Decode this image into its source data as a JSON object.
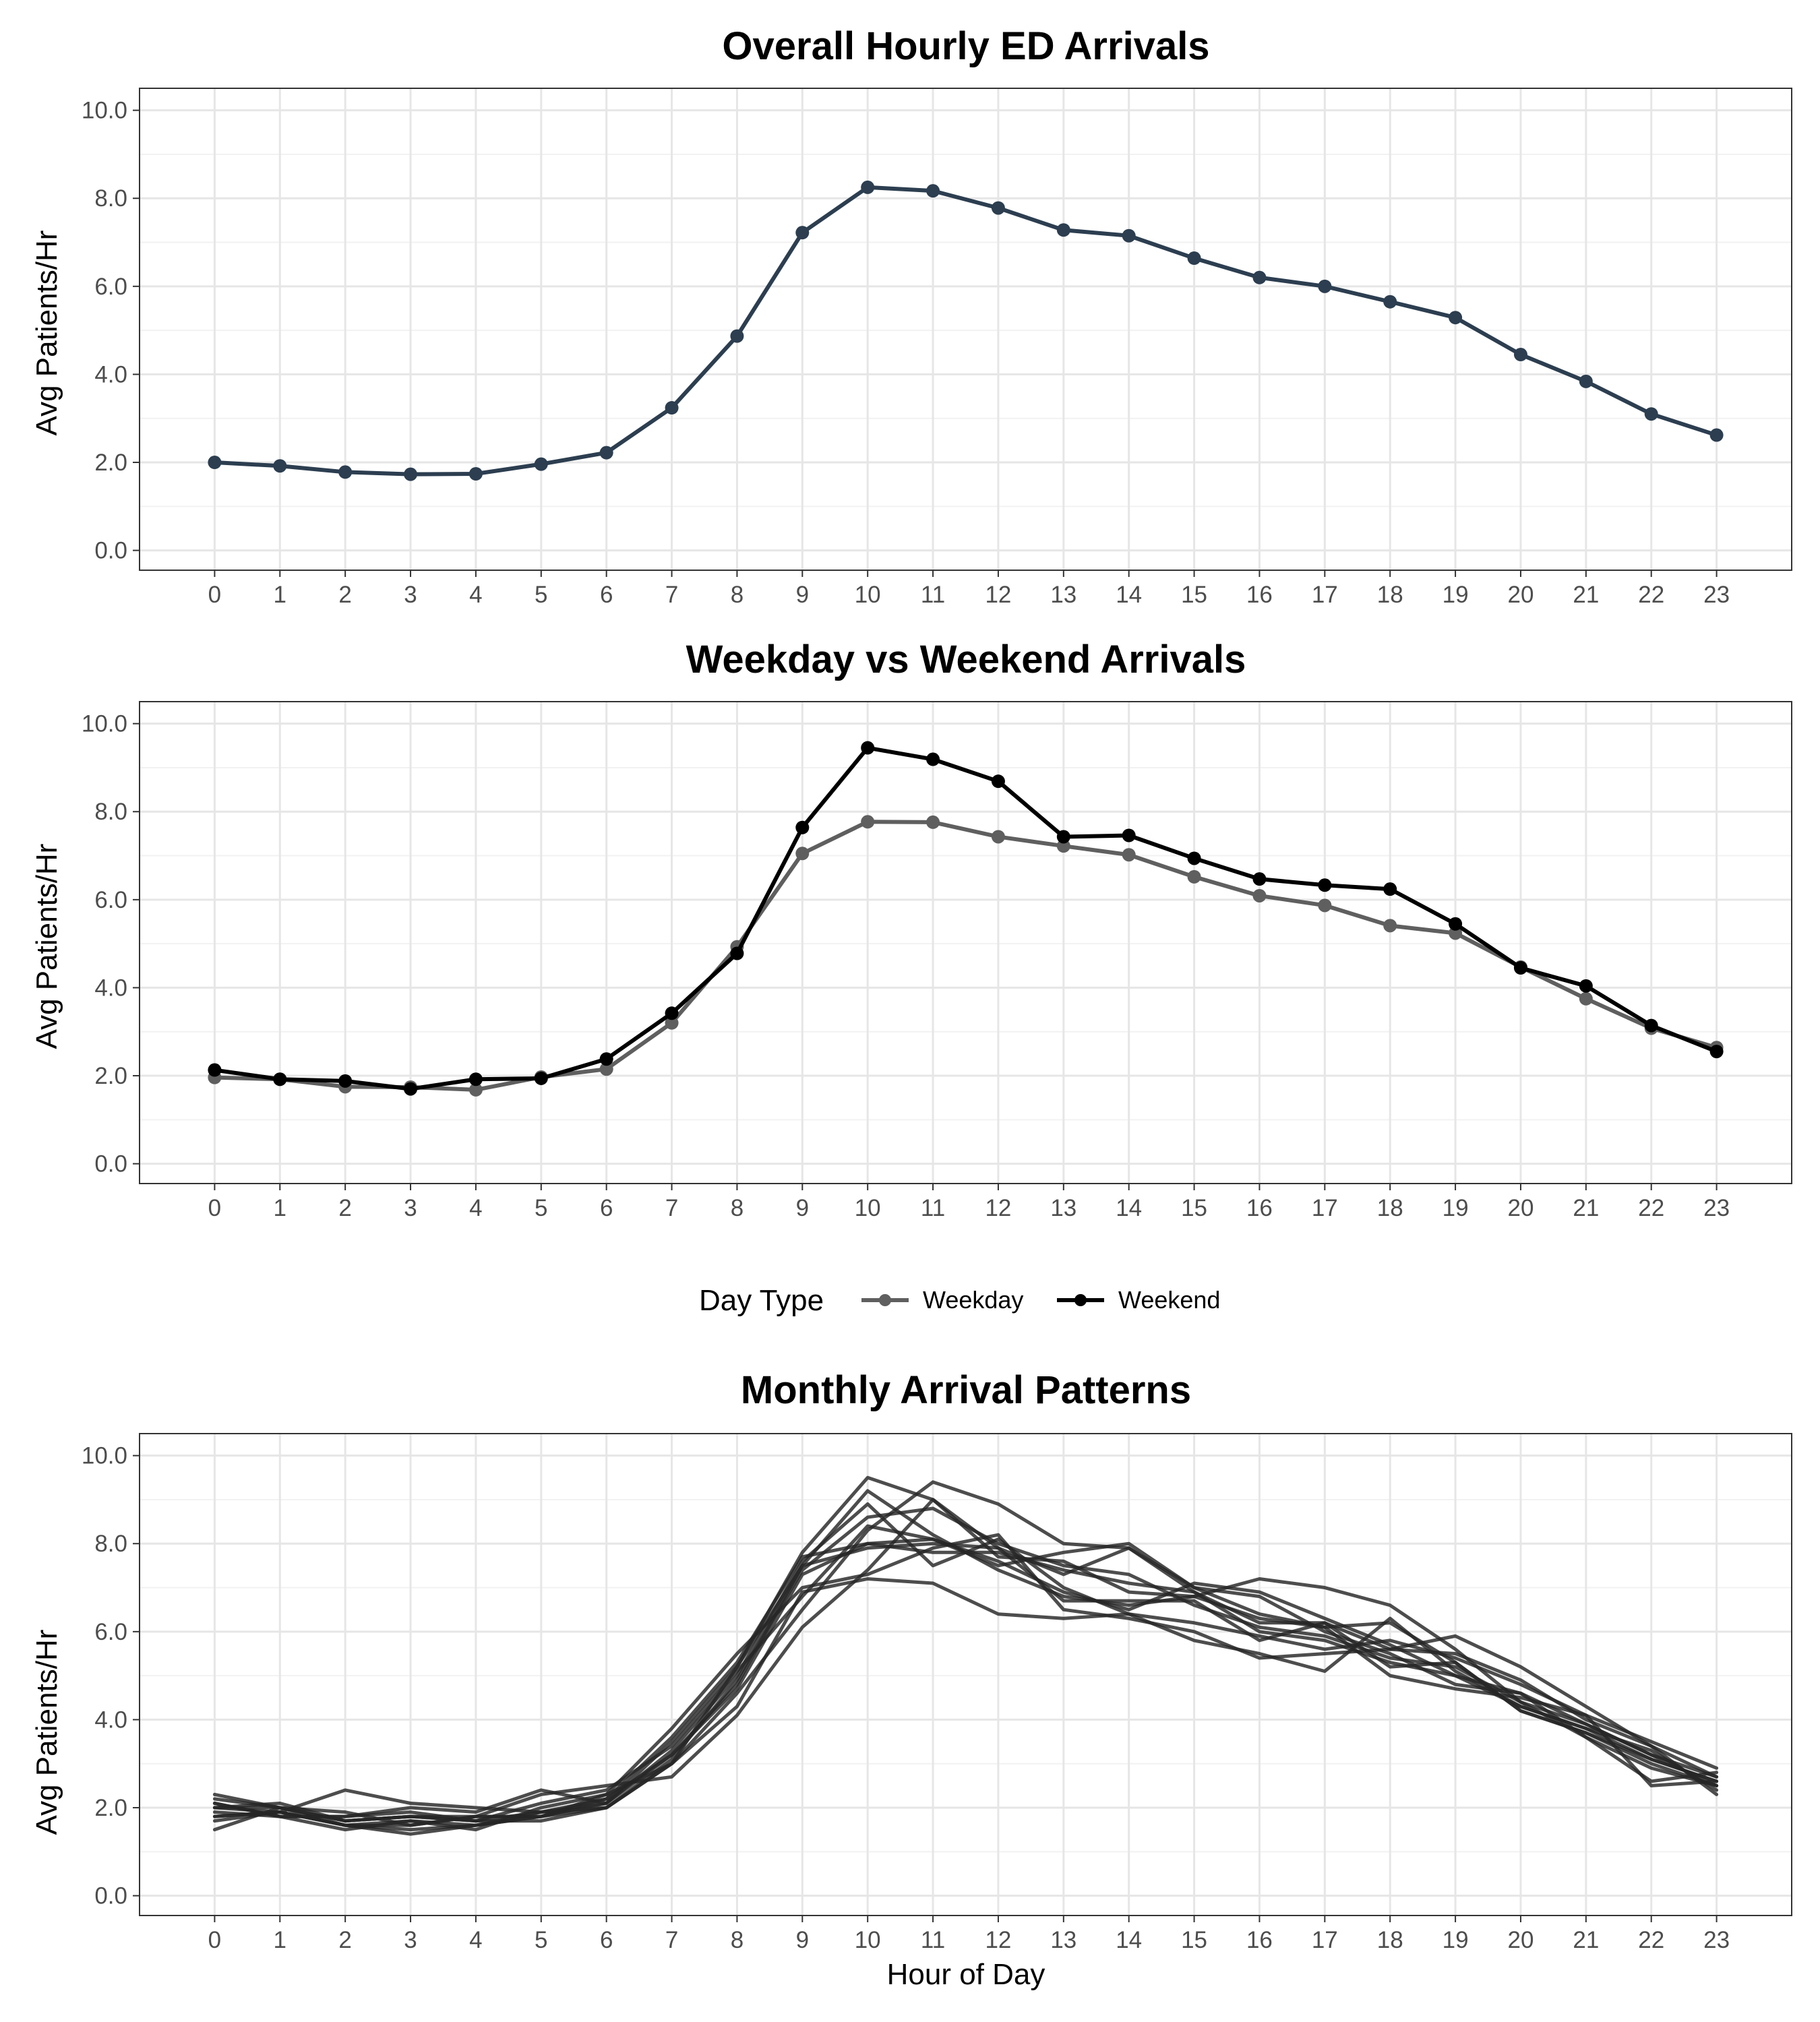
{
  "chart_data": [
    {
      "type": "line",
      "title": "Overall Hourly ED Arrivals",
      "xlabel": "",
      "ylabel": "Avg Patients/Hr",
      "x": [
        0,
        1,
        2,
        3,
        4,
        5,
        6,
        7,
        8,
        9,
        10,
        11,
        12,
        13,
        14,
        15,
        16,
        17,
        18,
        19,
        20,
        21,
        22,
        23
      ],
      "xlim": [
        -1.15,
        24.15
      ],
      "ylim": [
        -0.45,
        10.5
      ],
      "yticks": [
        "0.0",
        "2.0",
        "4.0",
        "6.0",
        "8.0",
        "10.0"
      ],
      "grid": true,
      "series": [
        {
          "color": "#2c3e50",
          "markers": true,
          "values": [
            2.0,
            1.92,
            1.78,
            1.73,
            1.74,
            1.96,
            2.22,
            3.24,
            4.87,
            7.22,
            8.25,
            8.17,
            7.78,
            7.28,
            7.15,
            6.64,
            6.2,
            6.0,
            5.65,
            5.29,
            4.45,
            3.84,
            3.1,
            2.62
          ]
        }
      ]
    },
    {
      "type": "line",
      "title": "Weekday vs Weekend Arrivals",
      "xlabel": "",
      "ylabel": "Avg Patients/Hr",
      "x": [
        0,
        1,
        2,
        3,
        4,
        5,
        6,
        7,
        8,
        9,
        10,
        11,
        12,
        13,
        14,
        15,
        16,
        17,
        18,
        19,
        20,
        21,
        22,
        23
      ],
      "xlim": [
        -1.15,
        24.15
      ],
      "ylim": [
        -0.45,
        10.5
      ],
      "yticks": [
        "0.0",
        "2.0",
        "4.0",
        "6.0",
        "8.0",
        "10.0"
      ],
      "grid": true,
      "legend": {
        "title": "Day Type",
        "position": "bottom"
      },
      "series": [
        {
          "name": "Weekday",
          "color": "#5f5f5f",
          "markers": true,
          "values": [
            1.96,
            1.92,
            1.75,
            1.74,
            1.68,
            1.97,
            2.15,
            3.2,
            4.93,
            7.05,
            7.77,
            7.76,
            7.43,
            7.22,
            7.02,
            6.52,
            6.09,
            5.87,
            5.41,
            5.24,
            4.47,
            3.75,
            3.08,
            2.64
          ]
        },
        {
          "name": "Weekend",
          "color": "#000000",
          "markers": true,
          "values": [
            2.13,
            1.92,
            1.88,
            1.7,
            1.92,
            1.94,
            2.38,
            3.42,
            4.78,
            7.64,
            9.45,
            9.19,
            8.69,
            7.43,
            7.46,
            6.94,
            6.47,
            6.33,
            6.24,
            5.45,
            4.45,
            4.04,
            3.14,
            2.55
          ]
        }
      ]
    },
    {
      "type": "line",
      "title": "Monthly Arrival Patterns",
      "xlabel": "Hour of Day",
      "ylabel": "Avg Patients/Hr",
      "x": [
        0,
        1,
        2,
        3,
        4,
        5,
        6,
        7,
        8,
        9,
        10,
        11,
        12,
        13,
        14,
        15,
        16,
        17,
        18,
        19,
        20,
        21,
        22,
        23
      ],
      "xlim": [
        -1.15,
        24.15
      ],
      "ylim": [
        -0.45,
        10.5
      ],
      "yticks": [
        "0.0",
        "2.0",
        "4.0",
        "6.0",
        "8.0",
        "10.0"
      ],
      "grid": true,
      "series": [
        {
          "color": "#262626",
          "values": [
            2.3,
            2.0,
            1.6,
            1.5,
            1.6,
            1.8,
            2.1,
            3.5,
            5.2,
            7.8,
            9.5,
            9.0,
            7.9,
            7.3,
            7.9,
            6.9,
            6.0,
            5.8,
            5.3,
            5.0,
            4.3,
            3.8,
            3.1,
            2.6
          ]
        },
        {
          "color": "#262626",
          "values": [
            1.5,
            2.0,
            1.7,
            1.8,
            1.7,
            1.7,
            2.0,
            3.0,
            4.6,
            6.5,
            8.3,
            9.4,
            8.9,
            8.0,
            7.9,
            7.0,
            6.4,
            6.1,
            6.2,
            5.3,
            4.2,
            3.7,
            3.0,
            2.5
          ]
        },
        {
          "color": "#262626",
          "values": [
            2.0,
            1.9,
            2.4,
            2.1,
            2.0,
            1.9,
            2.0,
            3.0,
            4.3,
            6.9,
            7.2,
            7.1,
            6.4,
            6.3,
            6.4,
            6.2,
            5.9,
            5.6,
            5.8,
            5.4,
            4.8,
            4.1,
            2.5,
            2.6
          ]
        },
        {
          "color": "#262626",
          "values": [
            1.8,
            1.9,
            1.6,
            1.4,
            1.6,
            1.8,
            2.2,
            3.2,
            4.8,
            7.5,
            9.2,
            8.2,
            7.4,
            6.8,
            6.6,
            6.8,
            6.3,
            6.1,
            5.0,
            4.7,
            4.5,
            4.1,
            3.5,
            2.9
          ]
        },
        {
          "color": "#262626",
          "values": [
            2.1,
            1.8,
            1.5,
            1.7,
            1.5,
            2.0,
            2.3,
            3.8,
            5.5,
            7.0,
            7.3,
            7.9,
            8.2,
            6.5,
            6.3,
            6.0,
            5.4,
            5.5,
            5.6,
            5.9,
            5.2,
            4.3,
            3.4,
            2.3
          ]
        },
        {
          "color": "#262626",
          "values": [
            2.2,
            2.0,
            1.9,
            1.6,
            1.8,
            2.3,
            2.5,
            2.7,
            4.1,
            6.1,
            7.4,
            9.0,
            7.7,
            7.6,
            6.9,
            6.8,
            7.2,
            7.0,
            6.6,
            5.6,
            4.4,
            3.6,
            2.6,
            2.8
          ]
        },
        {
          "color": "#262626",
          "values": [
            1.9,
            1.8,
            1.8,
            2.0,
            1.9,
            2.4,
            2.1,
            3.3,
            5.0,
            7.6,
            8.9,
            7.5,
            8.1,
            7.0,
            6.4,
            5.8,
            5.5,
            5.1,
            6.3,
            5.1,
            4.3,
            3.8,
            3.3,
            2.4
          ]
        },
        {
          "color": "#262626",
          "values": [
            2.0,
            2.0,
            1.7,
            1.8,
            1.7,
            1.9,
            2.2,
            3.6,
            5.3,
            7.7,
            8.0,
            8.1,
            7.6,
            6.9,
            6.5,
            7.1,
            6.9,
            6.3,
            5.7,
            5.0,
            4.6,
            3.9,
            3.2,
            2.7
          ]
        },
        {
          "color": "#262626",
          "values": [
            1.7,
            1.9,
            1.6,
            1.6,
            1.8,
            1.8,
            2.0,
            3.1,
            4.9,
            7.4,
            8.6,
            8.8,
            8.0,
            7.5,
            7.3,
            6.6,
            6.1,
            5.9,
            5.4,
            5.2,
            4.4,
            3.9,
            3.2,
            2.5
          ]
        },
        {
          "color": "#262626",
          "values": [
            2.1,
            1.8,
            1.8,
            1.9,
            1.7,
            2.1,
            2.4,
            3.4,
            5.1,
            6.8,
            8.4,
            8.1,
            7.5,
            7.8,
            8.0,
            7.0,
            6.8,
            6.0,
            5.5,
            4.8,
            4.6,
            3.6,
            2.9,
            2.5
          ]
        },
        {
          "color": "#262626",
          "values": [
            1.8,
            1.9,
            1.6,
            1.7,
            1.6,
            1.9,
            2.1,
            3.2,
            4.7,
            7.3,
            8.0,
            7.8,
            7.8,
            7.4,
            7.1,
            6.9,
            6.2,
            6.2,
            5.6,
            5.5,
            4.9,
            4.0,
            3.4,
            2.7
          ]
        },
        {
          "color": "#262626",
          "values": [
            2.0,
            2.1,
            1.7,
            1.8,
            1.8,
            1.8,
            2.3,
            3.0,
            5.2,
            7.5,
            7.9,
            8.0,
            7.9,
            6.7,
            6.7,
            6.7,
            5.8,
            6.2,
            5.2,
            5.3,
            4.2,
            3.7,
            3.1,
            2.6
          ]
        }
      ]
    }
  ]
}
